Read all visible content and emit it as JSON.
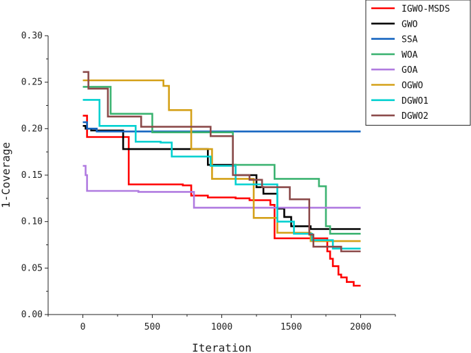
{
  "chart_data": {
    "type": "line",
    "title": "",
    "xlabel": "Iteration",
    "ylabel": "1-Coverage",
    "xlim": [
      -250,
      2250
    ],
    "ylim": [
      0.0,
      0.3
    ],
    "xticks": [
      0,
      500,
      1000,
      1500,
      2000
    ],
    "xtick_labels": [
      "0",
      "500",
      "1000",
      "1500",
      "2000"
    ],
    "yticks": [
      0.0,
      0.05,
      0.1,
      0.15,
      0.2,
      0.25,
      0.3
    ],
    "ytick_labels": [
      "0.00",
      "0.05",
      "0.10",
      "0.15",
      "0.20",
      "0.25",
      "0.30"
    ],
    "grid": false,
    "legend_position": "top-right",
    "step": true,
    "series": [
      {
        "name": "IGWO-MSDS",
        "color": "#ff0000",
        "x": [
          0,
          30,
          310,
          330,
          720,
          780,
          900,
          1100,
          1200,
          1350,
          1380,
          1720,
          1760,
          1780,
          1800,
          1840,
          1860,
          1900,
          1950,
          2000
        ],
        "y": [
          0.214,
          0.191,
          0.191,
          0.14,
          0.139,
          0.128,
          0.126,
          0.125,
          0.123,
          0.118,
          0.082,
          0.082,
          0.068,
          0.06,
          0.052,
          0.043,
          0.04,
          0.035,
          0.031,
          0.031
        ]
      },
      {
        "name": "GWO",
        "color": "#000000",
        "x": [
          0,
          20,
          60,
          290,
          680,
          900,
          1100,
          1250,
          1300,
          1400,
          1450,
          1500,
          1640,
          2000
        ],
        "y": [
          0.203,
          0.2,
          0.198,
          0.178,
          0.178,
          0.161,
          0.15,
          0.137,
          0.13,
          0.114,
          0.105,
          0.095,
          0.092,
          0.092
        ]
      },
      {
        "name": "SSA",
        "color": "#1565c0",
        "x": [
          0,
          30,
          100,
          2000
        ],
        "y": [
          0.207,
          0.2,
          0.197,
          0.197
        ]
      },
      {
        "name": "WOA",
        "color": "#3cb371",
        "x": [
          0,
          40,
          200,
          500,
          1080,
          1380,
          1700,
          1750,
          1780,
          2000
        ],
        "y": [
          0.245,
          0.245,
          0.216,
          0.196,
          0.161,
          0.146,
          0.138,
          0.095,
          0.087,
          0.087
        ]
      },
      {
        "name": "GOA",
        "color": "#b07be0",
        "x": [
          0,
          20,
          30,
          80,
          400,
          800,
          2000
        ],
        "y": [
          0.16,
          0.15,
          0.133,
          0.133,
          0.132,
          0.115,
          0.115
        ]
      },
      {
        "name": "OGWO",
        "color": "#d4a017",
        "x": [
          0,
          580,
          620,
          780,
          930,
          1230,
          1400,
          1640,
          2000
        ],
        "y": [
          0.252,
          0.246,
          0.22,
          0.178,
          0.146,
          0.104,
          0.088,
          0.079,
          0.079
        ]
      },
      {
        "name": "DGWO1",
        "color": "#00d0d0",
        "x": [
          0,
          120,
          380,
          560,
          640,
          920,
          1100,
          1400,
          1520,
          1650,
          1800,
          2000
        ],
        "y": [
          0.231,
          0.203,
          0.186,
          0.185,
          0.17,
          0.16,
          0.14,
          0.1,
          0.087,
          0.08,
          0.071,
          0.071
        ]
      },
      {
        "name": "DGWO2",
        "color": "#8b4a4a",
        "x": [
          0,
          40,
          180,
          420,
          800,
          920,
          1080,
          1200,
          1290,
          1490,
          1630,
          1660,
          1860,
          2000
        ],
        "y": [
          0.261,
          0.243,
          0.213,
          0.202,
          0.202,
          0.192,
          0.15,
          0.145,
          0.137,
          0.124,
          0.086,
          0.073,
          0.068,
          0.068
        ]
      }
    ]
  }
}
